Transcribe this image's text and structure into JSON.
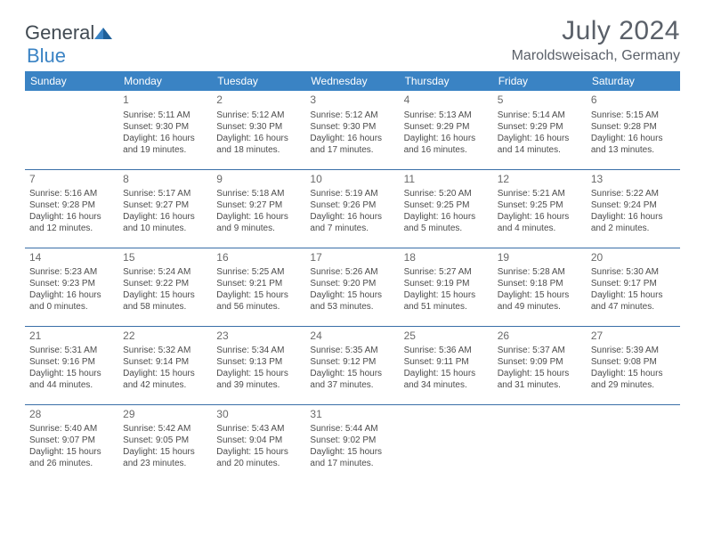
{
  "logo": {
    "text_a": "General",
    "text_b": "Blue"
  },
  "title": "July 2024",
  "location": "Maroldsweisach, Germany",
  "calendar": {
    "header_bg": "#3a83c4",
    "header_fg": "#ffffff",
    "border_color": "#3a6fa8",
    "text_color": "#4c4c4c",
    "daynum_color": "#6a6a6a",
    "days": [
      "Sunday",
      "Monday",
      "Tuesday",
      "Wednesday",
      "Thursday",
      "Friday",
      "Saturday"
    ],
    "weeks": [
      [
        null,
        {
          "n": "1",
          "sunrise": "5:11 AM",
          "sunset": "9:30 PM",
          "dl_h": "16",
          "dl_m": "19"
        },
        {
          "n": "2",
          "sunrise": "5:12 AM",
          "sunset": "9:30 PM",
          "dl_h": "16",
          "dl_m": "18"
        },
        {
          "n": "3",
          "sunrise": "5:12 AM",
          "sunset": "9:30 PM",
          "dl_h": "16",
          "dl_m": "17"
        },
        {
          "n": "4",
          "sunrise": "5:13 AM",
          "sunset": "9:29 PM",
          "dl_h": "16",
          "dl_m": "16"
        },
        {
          "n": "5",
          "sunrise": "5:14 AM",
          "sunset": "9:29 PM",
          "dl_h": "16",
          "dl_m": "14"
        },
        {
          "n": "6",
          "sunrise": "5:15 AM",
          "sunset": "9:28 PM",
          "dl_h": "16",
          "dl_m": "13"
        }
      ],
      [
        {
          "n": "7",
          "sunrise": "5:16 AM",
          "sunset": "9:28 PM",
          "dl_h": "16",
          "dl_m": "12"
        },
        {
          "n": "8",
          "sunrise": "5:17 AM",
          "sunset": "9:27 PM",
          "dl_h": "16",
          "dl_m": "10"
        },
        {
          "n": "9",
          "sunrise": "5:18 AM",
          "sunset": "9:27 PM",
          "dl_h": "16",
          "dl_m": "9"
        },
        {
          "n": "10",
          "sunrise": "5:19 AM",
          "sunset": "9:26 PM",
          "dl_h": "16",
          "dl_m": "7"
        },
        {
          "n": "11",
          "sunrise": "5:20 AM",
          "sunset": "9:25 PM",
          "dl_h": "16",
          "dl_m": "5"
        },
        {
          "n": "12",
          "sunrise": "5:21 AM",
          "sunset": "9:25 PM",
          "dl_h": "16",
          "dl_m": "4"
        },
        {
          "n": "13",
          "sunrise": "5:22 AM",
          "sunset": "9:24 PM",
          "dl_h": "16",
          "dl_m": "2"
        }
      ],
      [
        {
          "n": "14",
          "sunrise": "5:23 AM",
          "sunset": "9:23 PM",
          "dl_h": "16",
          "dl_m": "0"
        },
        {
          "n": "15",
          "sunrise": "5:24 AM",
          "sunset": "9:22 PM",
          "dl_h": "15",
          "dl_m": "58"
        },
        {
          "n": "16",
          "sunrise": "5:25 AM",
          "sunset": "9:21 PM",
          "dl_h": "15",
          "dl_m": "56"
        },
        {
          "n": "17",
          "sunrise": "5:26 AM",
          "sunset": "9:20 PM",
          "dl_h": "15",
          "dl_m": "53"
        },
        {
          "n": "18",
          "sunrise": "5:27 AM",
          "sunset": "9:19 PM",
          "dl_h": "15",
          "dl_m": "51"
        },
        {
          "n": "19",
          "sunrise": "5:28 AM",
          "sunset": "9:18 PM",
          "dl_h": "15",
          "dl_m": "49"
        },
        {
          "n": "20",
          "sunrise": "5:30 AM",
          "sunset": "9:17 PM",
          "dl_h": "15",
          "dl_m": "47"
        }
      ],
      [
        {
          "n": "21",
          "sunrise": "5:31 AM",
          "sunset": "9:16 PM",
          "dl_h": "15",
          "dl_m": "44"
        },
        {
          "n": "22",
          "sunrise": "5:32 AM",
          "sunset": "9:14 PM",
          "dl_h": "15",
          "dl_m": "42"
        },
        {
          "n": "23",
          "sunrise": "5:34 AM",
          "sunset": "9:13 PM",
          "dl_h": "15",
          "dl_m": "39"
        },
        {
          "n": "24",
          "sunrise": "5:35 AM",
          "sunset": "9:12 PM",
          "dl_h": "15",
          "dl_m": "37"
        },
        {
          "n": "25",
          "sunrise": "5:36 AM",
          "sunset": "9:11 PM",
          "dl_h": "15",
          "dl_m": "34"
        },
        {
          "n": "26",
          "sunrise": "5:37 AM",
          "sunset": "9:09 PM",
          "dl_h": "15",
          "dl_m": "31"
        },
        {
          "n": "27",
          "sunrise": "5:39 AM",
          "sunset": "9:08 PM",
          "dl_h": "15",
          "dl_m": "29"
        }
      ],
      [
        {
          "n": "28",
          "sunrise": "5:40 AM",
          "sunset": "9:07 PM",
          "dl_h": "15",
          "dl_m": "26"
        },
        {
          "n": "29",
          "sunrise": "5:42 AM",
          "sunset": "9:05 PM",
          "dl_h": "15",
          "dl_m": "23"
        },
        {
          "n": "30",
          "sunrise": "5:43 AM",
          "sunset": "9:04 PM",
          "dl_h": "15",
          "dl_m": "20"
        },
        {
          "n": "31",
          "sunrise": "5:44 AM",
          "sunset": "9:02 PM",
          "dl_h": "15",
          "dl_m": "17"
        },
        null,
        null,
        null
      ]
    ]
  },
  "labels": {
    "sunrise": "Sunrise: ",
    "sunset": "Sunset: ",
    "daylight_a": "Daylight: ",
    "daylight_b": " hours and ",
    "daylight_c": " minutes."
  }
}
